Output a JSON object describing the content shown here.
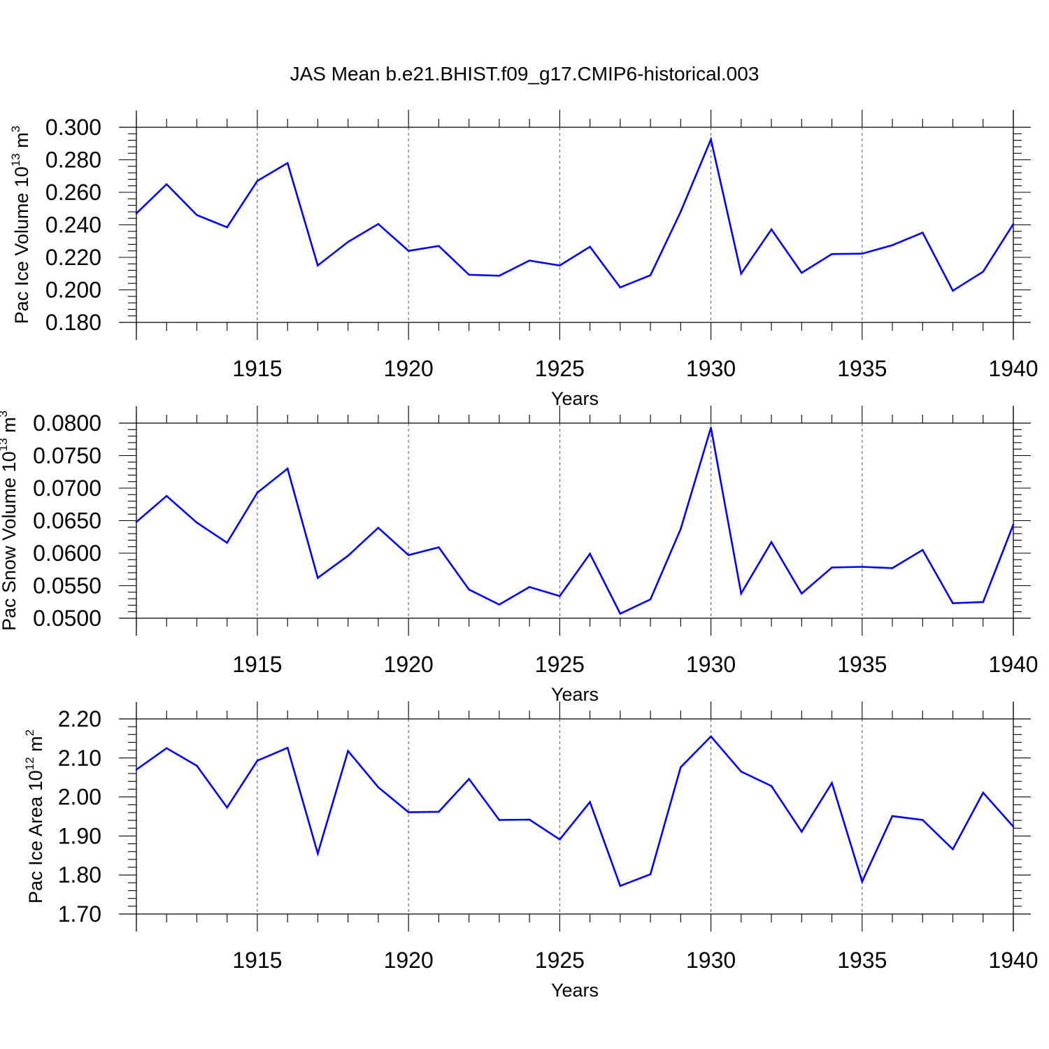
{
  "title": "JAS Mean b.e21.BHIST.f09_g17.CMIP6-historical.003",
  "colors": {
    "series": "#0000ff",
    "axis": "#000000",
    "grid": "#555555"
  },
  "chart_data": [
    {
      "type": "line",
      "ylabel": {
        "main": "Pac Ice Volume 10",
        "exp": "13",
        "unit": " m",
        "unit_exp": "3"
      },
      "xlabel": "Years",
      "ylim": [
        0.18,
        0.3
      ],
      "yticks": [
        "0.180",
        "0.200",
        "0.220",
        "0.240",
        "0.260",
        "0.280",
        "0.300"
      ],
      "ytick_values": [
        0.18,
        0.2,
        0.22,
        0.24,
        0.26,
        0.28,
        0.3
      ],
      "xlim": [
        1911,
        1940
      ],
      "xticks": [
        "1915",
        "1920",
        "1925",
        "1930",
        "1935",
        "1940"
      ],
      "xtick_values": [
        1915,
        1920,
        1925,
        1930,
        1935,
        1940
      ],
      "grid_x": [
        1915,
        1920,
        1925,
        1930,
        1935
      ],
      "x": [
        1911,
        1912,
        1913,
        1914,
        1915,
        1916,
        1917,
        1918,
        1919,
        1920,
        1921,
        1922,
        1923,
        1924,
        1925,
        1926,
        1927,
        1928,
        1929,
        1930,
        1931,
        1932,
        1933,
        1934,
        1935,
        1936,
        1937,
        1938,
        1939,
        1940
      ],
      "values": [
        0.247,
        0.265,
        0.246,
        0.2385,
        0.267,
        0.278,
        0.215,
        0.2295,
        0.2405,
        0.224,
        0.227,
        0.2093,
        0.2087,
        0.218,
        0.215,
        0.2265,
        0.2015,
        0.209,
        0.248,
        0.2925,
        0.21,
        0.2372,
        0.2105,
        0.222,
        0.2223,
        0.2275,
        0.2352,
        0.1995,
        0.2112,
        0.2405
      ]
    },
    {
      "type": "line",
      "ylabel": {
        "main": "Pac Snow Volume 10",
        "exp": "13",
        "unit": " m",
        "unit_exp": "3"
      },
      "xlabel": "Years",
      "ylim": [
        0.05,
        0.08
      ],
      "yticks": [
        "0.0500",
        "0.0550",
        "0.0600",
        "0.0650",
        "0.0700",
        "0.0750",
        "0.0800"
      ],
      "ytick_values": [
        0.05,
        0.055,
        0.06,
        0.065,
        0.07,
        0.075,
        0.08
      ],
      "xlim": [
        1911,
        1940
      ],
      "xticks": [
        "1915",
        "1920",
        "1925",
        "1930",
        "1935",
        "1940"
      ],
      "xtick_values": [
        1915,
        1920,
        1925,
        1930,
        1935,
        1940
      ],
      "grid_x": [
        1915,
        1920,
        1925,
        1930,
        1935
      ],
      "x": [
        1911,
        1912,
        1913,
        1914,
        1915,
        1916,
        1917,
        1918,
        1919,
        1920,
        1921,
        1922,
        1923,
        1924,
        1925,
        1926,
        1927,
        1928,
        1929,
        1930,
        1931,
        1932,
        1933,
        1934,
        1935,
        1936,
        1937,
        1938,
        1939,
        1940
      ],
      "values": [
        0.0648,
        0.0688,
        0.0647,
        0.0616,
        0.0693,
        0.073,
        0.0562,
        0.0596,
        0.0639,
        0.0597,
        0.0609,
        0.0544,
        0.0521,
        0.0548,
        0.0534,
        0.0599,
        0.0507,
        0.0529,
        0.0637,
        0.0793,
        0.0538,
        0.0617,
        0.0538,
        0.0578,
        0.0579,
        0.0577,
        0.0605,
        0.0523,
        0.0525,
        0.0644
      ]
    },
    {
      "type": "line",
      "ylabel": {
        "main": "Pac Ice Area 10",
        "exp": "12",
        "unit": " m",
        "unit_exp": "2"
      },
      "xlabel": "Years",
      "ylim": [
        1.7,
        2.2
      ],
      "yticks": [
        "1.70",
        "1.80",
        "1.90",
        "2.00",
        "2.10",
        "2.20"
      ],
      "ytick_values": [
        1.7,
        1.8,
        1.9,
        2.0,
        2.1,
        2.2
      ],
      "xlim": [
        1911,
        1940
      ],
      "xticks": [
        "1915",
        "1920",
        "1925",
        "1930",
        "1935",
        "1940"
      ],
      "xtick_values": [
        1915,
        1920,
        1925,
        1930,
        1935,
        1940
      ],
      "grid_x": [
        1915,
        1920,
        1925,
        1930,
        1935
      ],
      "x": [
        1911,
        1912,
        1913,
        1914,
        1915,
        1916,
        1917,
        1918,
        1919,
        1920,
        1921,
        1922,
        1923,
        1924,
        1925,
        1926,
        1927,
        1928,
        1929,
        1930,
        1931,
        1932,
        1933,
        1934,
        1935,
        1936,
        1937,
        1938,
        1939,
        1940
      ],
      "values": [
        2.07,
        2.125,
        2.08,
        1.973,
        2.093,
        2.126,
        1.855,
        2.118,
        2.025,
        1.961,
        1.962,
        2.046,
        1.941,
        1.942,
        1.891,
        1.987,
        1.772,
        1.802,
        2.076,
        2.155,
        2.065,
        2.028,
        1.911,
        2.036,
        1.783,
        1.951,
        1.941,
        1.866,
        2.011,
        1.924
      ]
    }
  ]
}
